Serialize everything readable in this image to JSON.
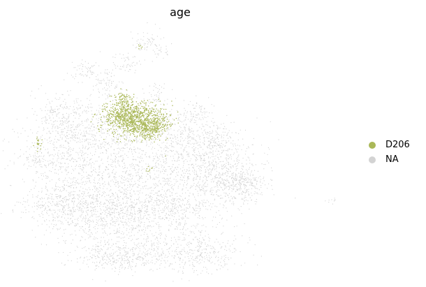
{
  "chart_data": {
    "type": "scatter",
    "title": "age",
    "xlabel": "",
    "ylabel": "",
    "axes_visible": false,
    "grid": false,
    "legend_position": "right",
    "series": [
      {
        "name": "D206",
        "color": "#aab858"
      },
      {
        "name": "NA",
        "color": "#d3d3d3"
      }
    ]
  }
}
